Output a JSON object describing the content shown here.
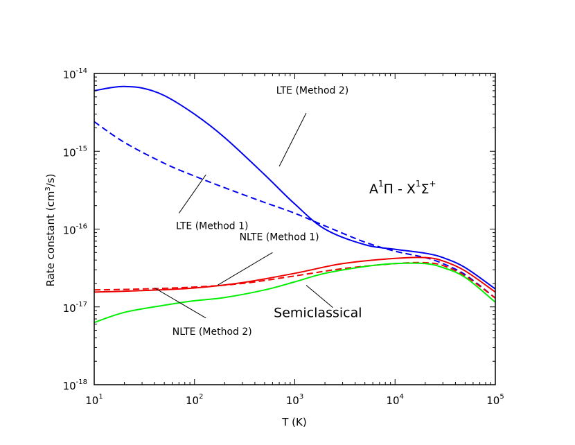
{
  "chart_data": {
    "type": "line",
    "title": "",
    "xlabel": "T (K)",
    "ylabel": "Rate constant (cm",
    "ylabel_sup": "3",
    "ylabel_suffix": "/s)",
    "x_scale": "log",
    "y_scale": "log",
    "xlim": [
      10,
      100000
    ],
    "ylim": [
      1e-18,
      1e-14
    ],
    "x_ticks": [
      {
        "base": "10",
        "exp": "1"
      },
      {
        "base": "10",
        "exp": "2"
      },
      {
        "base": "10",
        "exp": "3"
      },
      {
        "base": "10",
        "exp": "4"
      },
      {
        "base": "10",
        "exp": "5"
      }
    ],
    "y_ticks": [
      {
        "base": "10",
        "exp": "-18"
      },
      {
        "base": "10",
        "exp": "-17"
      },
      {
        "base": "10",
        "exp": "-16"
      },
      {
        "base": "10",
        "exp": "-15"
      },
      {
        "base": "10",
        "exp": "-14"
      }
    ],
    "transition_label": {
      "part1": "A",
      "sup1": "1",
      "part2": "Π - X",
      "sup2": "1",
      "part3": "Σ",
      "sup3": "+"
    },
    "series": [
      {
        "name": "LTE (Method 2)",
        "color": "#0000ee",
        "dash": "solid",
        "x": [
          10,
          15,
          20,
          30,
          50,
          100,
          200,
          500,
          1000,
          2000,
          5000,
          10000,
          20000,
          30000,
          50000,
          100000
        ],
        "y": [
          6e-15,
          6.6e-15,
          6.8e-15,
          6.5e-15,
          5.2e-15,
          3e-15,
          1.5e-15,
          5e-16,
          2.1e-16,
          1e-16,
          6.3e-17,
          5.5e-17,
          4.9e-17,
          4.3e-17,
          3.2e-17,
          1.7e-17
        ]
      },
      {
        "name": "LTE (Method 1)",
        "color": "#0000ee",
        "dash": "dashed",
        "x": [
          10,
          20,
          50,
          100,
          200,
          500,
          1000,
          2000,
          5000,
          10000,
          20000,
          30000,
          50000,
          100000
        ],
        "y": [
          2.4e-15,
          1.3e-15,
          7e-16,
          4.8e-16,
          3.4e-16,
          2.2e-16,
          1.6e-16,
          1.1e-16,
          6.8e-17,
          5.2e-17,
          4.3e-17,
          3.6e-17,
          2.6e-17,
          1.3e-17
        ]
      },
      {
        "name": "NLTE (Method 1)",
        "color": "#ee0000",
        "dash": "dashed",
        "x": [
          10,
          30,
          100,
          300,
          1000,
          3000,
          10000,
          20000,
          30000,
          50000,
          100000
        ],
        "y": [
          1.65e-17,
          1.7e-17,
          1.8e-17,
          2e-17,
          2.5e-17,
          3.1e-17,
          3.6e-17,
          3.7e-17,
          3.4e-17,
          2.5e-17,
          1.3e-17
        ]
      },
      {
        "name": "NLTE (Method 2)",
        "color": "#ee0000",
        "dash": "solid",
        "x": [
          10,
          30,
          100,
          300,
          1000,
          3000,
          10000,
          20000,
          30000,
          50000,
          100000
        ],
        "y": [
          1.55e-17,
          1.62e-17,
          1.75e-17,
          2.05e-17,
          2.7e-17,
          3.6e-17,
          4.2e-17,
          4.3e-17,
          3.9e-17,
          2.9e-17,
          1.55e-17
        ]
      },
      {
        "name": "Semiclassical",
        "color": "#00ee00",
        "dash": "solid",
        "x": [
          10,
          20,
          50,
          100,
          200,
          500,
          1000,
          2000,
          5000,
          10000,
          20000,
          30000,
          50000,
          100000
        ],
        "y": [
          6.3e-18,
          8.5e-18,
          1.05e-17,
          1.2e-17,
          1.32e-17,
          1.65e-17,
          2.1e-17,
          2.7e-17,
          3.3e-17,
          3.6e-17,
          3.6e-17,
          3.2e-17,
          2.4e-17,
          1.15e-17
        ]
      }
    ],
    "annotations": [
      {
        "text": "LTE (Method 2)",
        "text_x": 1500,
        "text_y": 5.5e-15,
        "point_x": 700,
        "point_y": 6.4e-16,
        "text_anchor": "middle",
        "line_from_x": 1300,
        "line_from_y": 3.1e-15
      },
      {
        "text": "LTE (Method 1)",
        "text_x": 150,
        "text_y": 1e-16,
        "point_x": 130,
        "point_y": 5e-16,
        "text_anchor": "middle",
        "line_from_x": 70,
        "line_from_y": 1.6e-16
      },
      {
        "text": "NLTE (Method 1)",
        "text_x": 700,
        "text_y": 7.2e-17,
        "point_x": 170,
        "point_y": 1.9e-17,
        "text_anchor": "middle",
        "line_from_x": 600,
        "line_from_y": 5e-17
      },
      {
        "text": "NLTE (Method 2)",
        "text_x": 150,
        "text_y": 4.4e-18,
        "point_x": 40,
        "point_y": 1.75e-17,
        "text_anchor": "middle",
        "line_from_x": 130,
        "line_from_y": 7.2e-18
      },
      {
        "text": "Semiclassical",
        "text_x": 1700,
        "text_y": 7.4e-18,
        "point_x": 1300,
        "point_y": 1.9e-17,
        "text_anchor": "middle",
        "line_from_x": 2400,
        "line_from_y": 9.8e-18,
        "big": true
      }
    ]
  }
}
